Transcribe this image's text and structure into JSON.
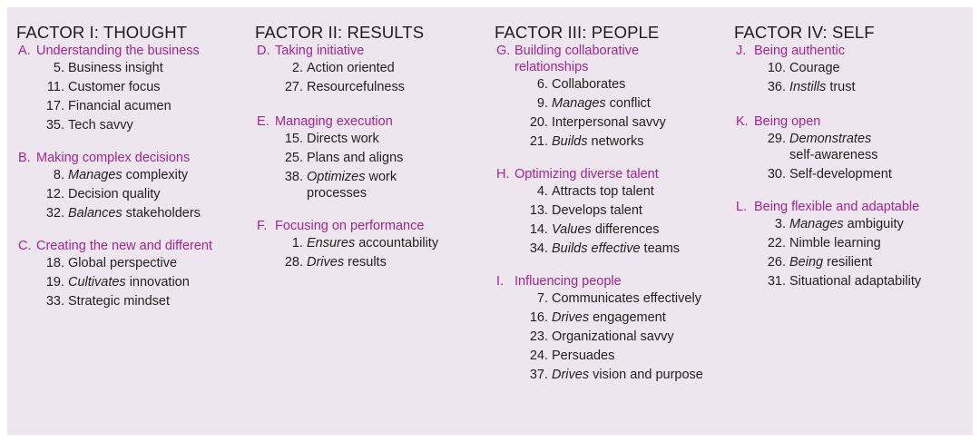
{
  "factors": [
    {
      "title": "FACTOR I: THOUGHT",
      "clusters": [
        {
          "letter": "A.",
          "label": "Understanding the business",
          "items": [
            {
              "num": "5.",
              "pre": "",
              "text": "Business insight"
            },
            {
              "num": "11.",
              "pre": "",
              "text": "Customer focus"
            },
            {
              "num": "17.",
              "pre": "",
              "text": "Financial acumen"
            },
            {
              "num": "35.",
              "pre": "",
              "text": "Tech savvy"
            }
          ]
        },
        {
          "letter": "B.",
          "label": "Making complex decisions",
          "items": [
            {
              "num": "8.",
              "pre": "Manages",
              "text": " complexity"
            },
            {
              "num": "12.",
              "pre": "",
              "text": "Decision quality"
            },
            {
              "num": "32.",
              "pre": "Balances",
              "text": " stakeholders"
            }
          ]
        },
        {
          "letter": "C.",
          "label": "Creating the new and different",
          "items": [
            {
              "num": "18.",
              "pre": "",
              "text": "Global perspective"
            },
            {
              "num": "19.",
              "pre": "Cultivates",
              "text": " innovation"
            },
            {
              "num": "33.",
              "pre": "",
              "text": "Strategic mindset"
            }
          ]
        }
      ]
    },
    {
      "title": "FACTOR II: RESULTS",
      "clusters": [
        {
          "letter": "D.",
          "label": "Taking initiative",
          "items": [
            {
              "num": "2.",
              "pre": "",
              "text": "Action oriented"
            },
            {
              "num": "27.",
              "pre": "",
              "text": "Resourcefulness"
            }
          ]
        },
        {
          "letter": "E.",
          "label": "Managing execution",
          "items": [
            {
              "num": "15.",
              "pre": "",
              "text": "Directs work"
            },
            {
              "num": "25.",
              "pre": "",
              "text": "Plans and aligns"
            },
            {
              "num": "38.",
              "pre": "Optimizes",
              "text": " work processes"
            }
          ]
        },
        {
          "letter": "F.",
          "label": "Focusing on performance",
          "items": [
            {
              "num": "1.",
              "pre": "Ensures",
              "text": " accountability"
            },
            {
              "num": "28.",
              "pre": "Drives",
              "text": " results"
            }
          ]
        }
      ]
    },
    {
      "title": "FACTOR III: PEOPLE",
      "clusters": [
        {
          "letter": "G.",
          "label": "Building collaborative relationships",
          "items": [
            {
              "num": "6.",
              "pre": "",
              "text": "Collaborates"
            },
            {
              "num": "9.",
              "pre": "Manages",
              "text": " conflict"
            },
            {
              "num": "20.",
              "pre": "",
              "text": "Interpersonal savvy"
            },
            {
              "num": "21.",
              "pre": "Builds",
              "text": " networks"
            }
          ]
        },
        {
          "letter": "H.",
          "label": "Optimizing diverse talent",
          "items": [
            {
              "num": "4.",
              "pre": "",
              "text": "Attracts top talent"
            },
            {
              "num": "13.",
              "pre": "",
              "text": "Develops talent"
            },
            {
              "num": "14.",
              "pre": "Values",
              "text": " differences"
            },
            {
              "num": "34.",
              "pre": "Builds effective",
              "text": " teams"
            }
          ]
        },
        {
          "letter": "I.",
          "label": "Influencing people",
          "items": [
            {
              "num": "7.",
              "pre": "",
              "text": "Communicates effectively"
            },
            {
              "num": "16.",
              "pre": "Drives",
              "text": " engagement"
            },
            {
              "num": "23.",
              "pre": "",
              "text": "Organizational savvy"
            },
            {
              "num": "24.",
              "pre": "",
              "text": "Persuades"
            },
            {
              "num": "37.",
              "pre": "Drives",
              "text": " vision and purpose"
            }
          ]
        }
      ]
    },
    {
      "title": "FACTOR IV: SELF",
      "clusters": [
        {
          "letter": "J.",
          "label": "Being authentic",
          "items": [
            {
              "num": "10.",
              "pre": "",
              "text": "Courage"
            },
            {
              "num": "36.",
              "pre": "Instills",
              "text": " trust"
            }
          ]
        },
        {
          "letter": "K.",
          "label": "Being open",
          "items": [
            {
              "num": "29.",
              "pre": "Demonstrates",
              "text": " self-awareness"
            },
            {
              "num": "30.",
              "pre": "",
              "text": "Self-development"
            }
          ]
        },
        {
          "letter": "L.",
          "label": "Being flexible and adaptable",
          "items": [
            {
              "num": "3.",
              "pre": "Manages",
              "text": " ambiguity"
            },
            {
              "num": "22.",
              "pre": "",
              "text": "Nimble learning"
            },
            {
              "num": "26.",
              "pre": "Being",
              "text": " resilient"
            },
            {
              "num": "31.",
              "pre": "",
              "text": "Situational adaptability"
            }
          ]
        }
      ]
    }
  ]
}
